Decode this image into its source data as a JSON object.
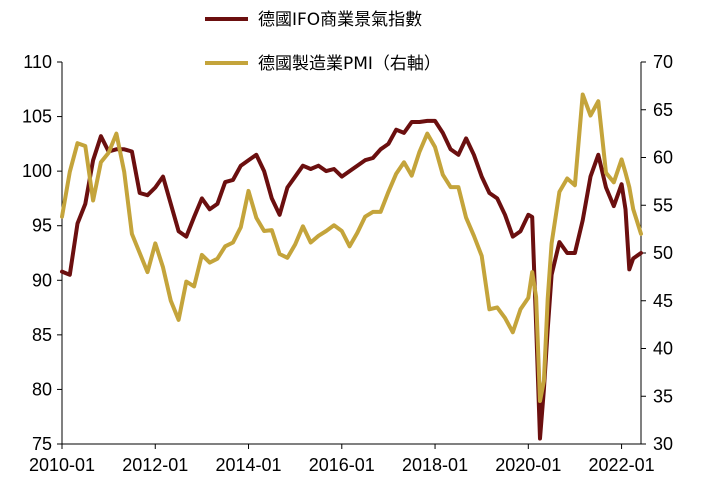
{
  "chart_data": {
    "type": "line",
    "title": "",
    "xlabel": "",
    "ylabel": "",
    "y2label": "",
    "x_range": [
      "2010-01",
      "2022-06"
    ],
    "x_ticks": [
      "2010-01",
      "2012-01",
      "2014-01",
      "2016-01",
      "2018-01",
      "2020-01",
      "2022-01"
    ],
    "ylim": [
      75,
      110
    ],
    "y_ticks": [
      75,
      80,
      85,
      90,
      95,
      100,
      105,
      110
    ],
    "y2lim": [
      30,
      70
    ],
    "y2_ticks": [
      30,
      35,
      40,
      45,
      50,
      55,
      60,
      65,
      70
    ],
    "grid": false,
    "legend_position": "top-center",
    "series": [
      {
        "name": "德國IFO商業景氣指數",
        "axis": "left",
        "color": "#6b0f0f",
        "x": [
          "2010-01",
          "2010-03",
          "2010-05",
          "2010-07",
          "2010-09",
          "2010-11",
          "2011-01",
          "2011-03",
          "2011-05",
          "2011-07",
          "2011-09",
          "2011-11",
          "2012-01",
          "2012-03",
          "2012-05",
          "2012-07",
          "2012-09",
          "2012-11",
          "2013-01",
          "2013-03",
          "2013-05",
          "2013-07",
          "2013-09",
          "2013-11",
          "2014-01",
          "2014-03",
          "2014-05",
          "2014-07",
          "2014-09",
          "2014-11",
          "2015-01",
          "2015-03",
          "2015-05",
          "2015-07",
          "2015-09",
          "2015-11",
          "2016-01",
          "2016-03",
          "2016-05",
          "2016-07",
          "2016-09",
          "2016-11",
          "2017-01",
          "2017-03",
          "2017-05",
          "2017-07",
          "2017-09",
          "2017-11",
          "2018-01",
          "2018-03",
          "2018-05",
          "2018-07",
          "2018-09",
          "2018-11",
          "2019-01",
          "2019-03",
          "2019-05",
          "2019-07",
          "2019-09",
          "2019-11",
          "2020-01",
          "2020-02",
          "2020-03",
          "2020-04",
          "2020-05",
          "2020-06",
          "2020-07",
          "2020-09",
          "2020-11",
          "2021-01",
          "2021-03",
          "2021-05",
          "2021-07",
          "2021-09",
          "2021-11",
          "2022-01",
          "2022-02",
          "2022-03",
          "2022-04",
          "2022-06"
        ],
        "values": [
          90.8,
          90.5,
          95.2,
          97.0,
          101.0,
          103.2,
          101.8,
          102.0,
          102.0,
          101.8,
          98.0,
          97.8,
          98.5,
          99.5,
          97.0,
          94.5,
          94.0,
          95.8,
          97.5,
          96.5,
          97.0,
          99.0,
          99.2,
          100.5,
          101.0,
          101.5,
          100.0,
          97.5,
          96.0,
          98.5,
          99.5,
          100.5,
          100.2,
          100.5,
          100.0,
          100.2,
          99.5,
          100.0,
          100.5,
          101.0,
          101.2,
          102.0,
          102.5,
          103.8,
          103.5,
          104.5,
          104.5,
          104.6,
          104.6,
          103.5,
          102.0,
          101.5,
          103.0,
          101.5,
          99.5,
          98.0,
          97.5,
          96.0,
          94.0,
          94.5,
          96.0,
          95.8,
          86.0,
          75.5,
          80.0,
          85.5,
          90.5,
          93.5,
          92.5,
          92.5,
          95.5,
          99.5,
          101.5,
          98.5,
          96.8,
          98.8,
          96.5,
          91.0,
          92.0,
          92.5
        ]
      },
      {
        "name": "德國製造業PMI（右軸）",
        "axis": "right",
        "color": "#c4a43b",
        "x": [
          "2010-01",
          "2010-03",
          "2010-05",
          "2010-07",
          "2010-09",
          "2010-11",
          "2011-01",
          "2011-03",
          "2011-05",
          "2011-07",
          "2011-09",
          "2011-11",
          "2012-01",
          "2012-03",
          "2012-05",
          "2012-07",
          "2012-09",
          "2012-11",
          "2013-01",
          "2013-03",
          "2013-05",
          "2013-07",
          "2013-09",
          "2013-11",
          "2014-01",
          "2014-03",
          "2014-05",
          "2014-07",
          "2014-09",
          "2014-11",
          "2015-01",
          "2015-03",
          "2015-05",
          "2015-07",
          "2015-09",
          "2015-11",
          "2016-01",
          "2016-03",
          "2016-05",
          "2016-07",
          "2016-09",
          "2016-11",
          "2017-01",
          "2017-03",
          "2017-05",
          "2017-07",
          "2017-09",
          "2017-11",
          "2018-01",
          "2018-03",
          "2018-05",
          "2018-07",
          "2018-09",
          "2018-11",
          "2019-01",
          "2019-03",
          "2019-05",
          "2019-07",
          "2019-09",
          "2019-11",
          "2020-01",
          "2020-02",
          "2020-03",
          "2020-04",
          "2020-05",
          "2020-06",
          "2020-07",
          "2020-09",
          "2020-11",
          "2021-01",
          "2021-03",
          "2021-05",
          "2021-07",
          "2021-09",
          "2021-11",
          "2022-01",
          "2022-02",
          "2022-03",
          "2022-04",
          "2022-06"
        ],
        "values": [
          53.8,
          58.5,
          61.5,
          61.2,
          55.5,
          59.5,
          60.5,
          62.5,
          58.5,
          52.0,
          50.0,
          48.0,
          51.0,
          48.5,
          45.0,
          43.0,
          47.0,
          46.5,
          49.8,
          49.0,
          49.4,
          50.7,
          51.1,
          52.7,
          56.5,
          53.7,
          52.3,
          52.4,
          49.9,
          49.5,
          50.9,
          52.8,
          51.1,
          51.8,
          52.3,
          52.9,
          52.3,
          50.7,
          52.1,
          53.8,
          54.3,
          54.3,
          56.4,
          58.3,
          59.5,
          58.1,
          60.6,
          62.5,
          61.1,
          58.2,
          56.9,
          56.9,
          53.7,
          51.8,
          49.7,
          44.1,
          44.3,
          43.2,
          41.7,
          44.1,
          45.3,
          48.0,
          45.4,
          34.5,
          36.6,
          45.2,
          51.0,
          56.4,
          57.8,
          57.1,
          66.6,
          64.4,
          65.9,
          58.4,
          57.4,
          59.8,
          58.4,
          56.9,
          54.6,
          52.0
        ]
      }
    ]
  }
}
